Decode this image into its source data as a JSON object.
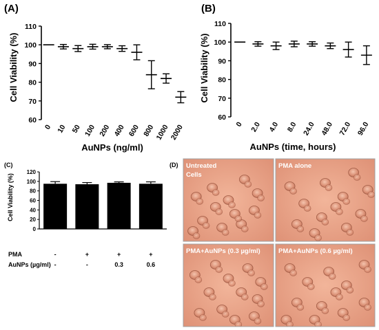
{
  "chart_data": [
    {
      "panel": "(A)",
      "type": "scatter",
      "xlabel": "AuNPs (ng/ml)",
      "ylabel": "Cell Viability (%)",
      "ylim": [
        60,
        110
      ],
      "yticks": [
        "60",
        "70",
        "80",
        "90",
        "100",
        "110"
      ],
      "categories": [
        "0",
        "10",
        "50",
        "100",
        "200",
        "400",
        "600",
        "800",
        "1000",
        "2000"
      ],
      "values": [
        100,
        99,
        98,
        99,
        99,
        98,
        96,
        84,
        82,
        72
      ],
      "errors": [
        0,
        1.2,
        1.6,
        1.3,
        1.1,
        1.5,
        4,
        7.5,
        2.5,
        3
      ]
    },
    {
      "panel": "(B)",
      "type": "scatter",
      "xlabel": "AuNPs (time, hours)",
      "ylabel": "Cell Viability (%)",
      "ylim": [
        60,
        110
      ],
      "yticks": [
        "60",
        "70",
        "80",
        "90",
        "100",
        "110"
      ],
      "categories": [
        "0",
        "2.0",
        "4.0",
        "8.0",
        "24.0",
        "48.0",
        "72.0",
        "96.0"
      ],
      "values": [
        100,
        99,
        98,
        99,
        99,
        98,
        96,
        93
      ],
      "errors": [
        0,
        1.2,
        2,
        1.5,
        1.2,
        1.5,
        4,
        5
      ]
    },
    {
      "panel": "(C)",
      "type": "bar",
      "ylabel": "Cell Viability (%)",
      "ylim": [
        0,
        120
      ],
      "yticks": [
        "0",
        "20",
        "40",
        "60",
        "80",
        "100",
        "120"
      ],
      "values": [
        95,
        94,
        97,
        95
      ],
      "errors": [
        4.5,
        3.5,
        2,
        4
      ],
      "bar_color": "#000000",
      "conditions": [
        {
          "label": "PMA",
          "values": [
            "-",
            "+",
            "+",
            "+"
          ]
        },
        {
          "label": "AuNPs (µg/ml)",
          "values": [
            "-",
            "-",
            "0.3",
            "0.6"
          ]
        }
      ]
    }
  ],
  "panel_d": {
    "letter": "(D)",
    "images": [
      {
        "label_line1": "Untreated",
        "label_line2": "Cells"
      },
      {
        "label_line1": "PMA alone",
        "label_line2": ""
      },
      {
        "label_line1": "PMA+AuNPs (0.3 µg/ml)",
        "label_line2": ""
      },
      {
        "label_line1": "PMA+AuNPs (0.6 µg/ml)",
        "label_line2": ""
      }
    ],
    "tint_color": "#e8a187"
  }
}
